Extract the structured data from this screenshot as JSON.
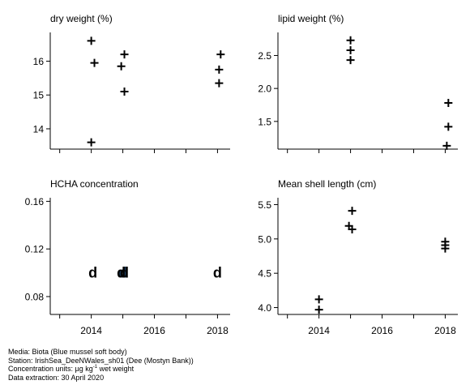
{
  "chart_data": [
    {
      "type": "scatter",
      "title": "dry weight (%)",
      "xlim": [
        2012.7,
        2018.4
      ],
      "ylim": [
        13.4,
        16.85
      ],
      "x_ticks": [
        2014,
        2016,
        2018
      ],
      "x_minor_ticks": [
        2013,
        2014,
        2015,
        2016,
        2017,
        2018
      ],
      "y_ticks": [
        14,
        15,
        16
      ],
      "y_tick_labels": [
        "14",
        "15",
        "16"
      ],
      "show_x_labels": false,
      "x_tick_labels": [
        "2014",
        "2016",
        "2018"
      ],
      "marker": "+",
      "points": [
        {
          "x": 2014.0,
          "y": 16.6
        },
        {
          "x": 2014.1,
          "y": 15.95
        },
        {
          "x": 2014.0,
          "y": 13.6
        },
        {
          "x": 2014.95,
          "y": 15.85
        },
        {
          "x": 2015.05,
          "y": 16.2
        },
        {
          "x": 2015.05,
          "y": 15.1
        },
        {
          "x": 2018.1,
          "y": 16.2
        },
        {
          "x": 2018.05,
          "y": 15.75
        },
        {
          "x": 2018.05,
          "y": 15.35
        }
      ]
    },
    {
      "type": "scatter",
      "title": "lipid weight (%)",
      "xlim": [
        2012.7,
        2018.4
      ],
      "ylim": [
        1.08,
        2.85
      ],
      "x_ticks": [
        2014,
        2016,
        2018
      ],
      "x_minor_ticks": [
        2013,
        2014,
        2015,
        2016,
        2017,
        2018
      ],
      "y_ticks": [
        1.5,
        2.0,
        2.5
      ],
      "y_tick_labels": [
        "1.5",
        "2.0",
        "2.5"
      ],
      "show_x_labels": false,
      "x_tick_labels": [
        "2014",
        "2016",
        "2018"
      ],
      "marker": "+",
      "points": [
        {
          "x": 2015.0,
          "y": 2.73
        },
        {
          "x": 2015.0,
          "y": 2.58
        },
        {
          "x": 2015.0,
          "y": 2.43
        },
        {
          "x": 2018.1,
          "y": 1.78
        },
        {
          "x": 2018.1,
          "y": 1.42
        },
        {
          "x": 2018.05,
          "y": 1.13
        }
      ]
    },
    {
      "type": "scatter",
      "title": "HCHA concentration",
      "xlim": [
        2012.7,
        2018.4
      ],
      "ylim": [
        0.065,
        0.163
      ],
      "x_ticks": [
        2014,
        2016,
        2018
      ],
      "x_minor_ticks": [
        2013,
        2014,
        2015,
        2016,
        2017,
        2018
      ],
      "y_ticks": [
        0.08,
        0.12,
        0.16
      ],
      "y_tick_labels": [
        "0.08",
        "0.12",
        "0.16"
      ],
      "show_x_labels": true,
      "x_tick_labels": [
        "2014",
        "2016",
        "2018"
      ],
      "marker": "d",
      "points": [
        {
          "x": 2014.05,
          "y": 0.1
        },
        {
          "x": 2015.0,
          "y": 0.1,
          "color": "#1a3a5c"
        },
        {
          "x": 2015.05,
          "y": 0.1
        },
        {
          "x": 2014.95,
          "y": 0.1
        },
        {
          "x": 2018.0,
          "y": 0.1
        }
      ]
    },
    {
      "type": "scatter",
      "title": "Mean shell length (cm)",
      "xlim": [
        2012.7,
        2018.4
      ],
      "ylim": [
        3.9,
        5.6
      ],
      "x_ticks": [
        2014,
        2016,
        2018
      ],
      "x_minor_ticks": [
        2013,
        2014,
        2015,
        2016,
        2017,
        2018
      ],
      "y_ticks": [
        4.0,
        4.5,
        5.0,
        5.5
      ],
      "y_tick_labels": [
        "4.0",
        "4.5",
        "5.0",
        "5.5"
      ],
      "show_x_labels": true,
      "x_tick_labels": [
        "2014",
        "2016",
        "2018"
      ],
      "marker": "+",
      "points": [
        {
          "x": 2014.0,
          "y": 4.12
        },
        {
          "x": 2014.0,
          "y": 3.97
        },
        {
          "x": 2015.05,
          "y": 5.41
        },
        {
          "x": 2014.95,
          "y": 5.19
        },
        {
          "x": 2015.05,
          "y": 5.14
        },
        {
          "x": 2018.0,
          "y": 4.96
        },
        {
          "x": 2018.0,
          "y": 4.91
        },
        {
          "x": 2018.0,
          "y": 4.86
        }
      ]
    }
  ],
  "footer": {
    "media": "Media: Biota (Blue mussel soft body)",
    "station": "Station: IrishSea_DeeNWales_sh01 (Dee (Mostyn Bank))",
    "units_prefix": "Concentration units:  µg kg",
    "units_exp": "-1",
    "units_suffix": " wet weight",
    "extraction": "Data extraction: 30 April 2020"
  }
}
